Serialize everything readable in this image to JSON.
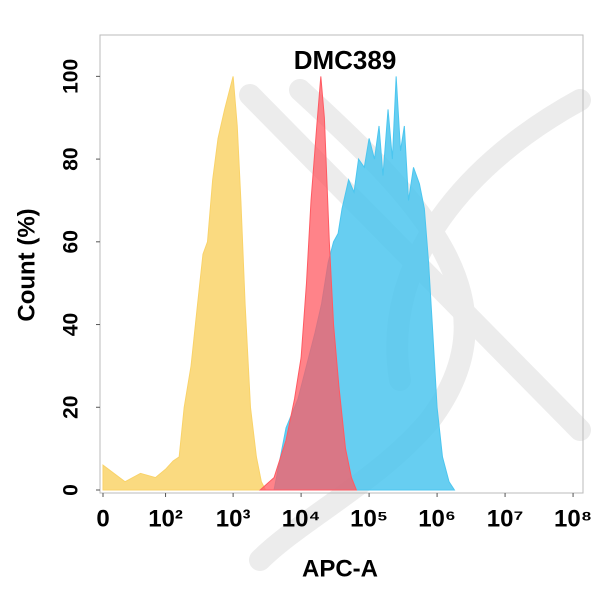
{
  "chart_data": {
    "type": "area",
    "title": "DMC389",
    "x_label": "APC-A",
    "y_label": "Count  (%)",
    "xscale": "biexponential",
    "xlim": [
      0,
      140000000
    ],
    "xticks": [
      0,
      {
        "value": 100,
        "label": "10²"
      },
      {
        "value": 1000,
        "label": "10³"
      },
      {
        "value": 10000,
        "label": "10⁴"
      },
      {
        "value": 100000,
        "label": "10⁵"
      },
      {
        "value": 1000000,
        "label": "10⁶"
      },
      {
        "value": 10000000,
        "label": "10⁷"
      },
      {
        "value": 100000000,
        "label": "10⁸"
      }
    ],
    "ylim": [
      0,
      110
    ],
    "yticks": [
      0,
      20,
      40,
      60,
      80,
      100
    ],
    "series": [
      {
        "color": "#f9d36a",
        "x": [
          0,
          20,
          40,
          70,
          100,
          130,
          160,
          190,
          240,
          300,
          360,
          420,
          500,
          600,
          750,
          1000,
          1150,
          1300,
          1500,
          1800,
          2200,
          2600,
          3000
        ],
        "values": [
          6,
          2,
          4,
          3,
          5,
          7,
          8,
          20,
          30,
          45,
          57,
          60,
          75,
          85,
          92,
          100,
          88,
          70,
          45,
          20,
          8,
          2,
          0
        ]
      },
      {
        "color": "#4cc6ef",
        "x": [
          4000,
          6000,
          9000,
          12000,
          16000,
          20000,
          25000,
          30000,
          35000,
          40000,
          50000,
          60000,
          70000,
          85000,
          100000,
          120000,
          140000,
          160000,
          190000,
          220000,
          250000,
          290000,
          330000,
          380000,
          450000,
          550000,
          650000,
          750000,
          850000,
          1000000,
          1200000,
          1500000,
          1800000
        ],
        "values": [
          0,
          15,
          22,
          30,
          38,
          45,
          55,
          60,
          62,
          68,
          75,
          72,
          80,
          78,
          85,
          80,
          88,
          76,
          92,
          80,
          100,
          82,
          88,
          70,
          78,
          74,
          68,
          55,
          40,
          20,
          8,
          2,
          0
        ]
      },
      {
        "color": "#ff5a62",
        "x": [
          2500,
          4000,
          6000,
          8000,
          10000,
          12000,
          14000,
          17000,
          19500,
          22000,
          26000,
          30000,
          36000,
          45000,
          55000,
          65000
        ],
        "values": [
          0,
          3,
          12,
          22,
          32,
          50,
          70,
          88,
          100,
          90,
          60,
          40,
          25,
          10,
          3,
          0
        ]
      }
    ]
  }
}
